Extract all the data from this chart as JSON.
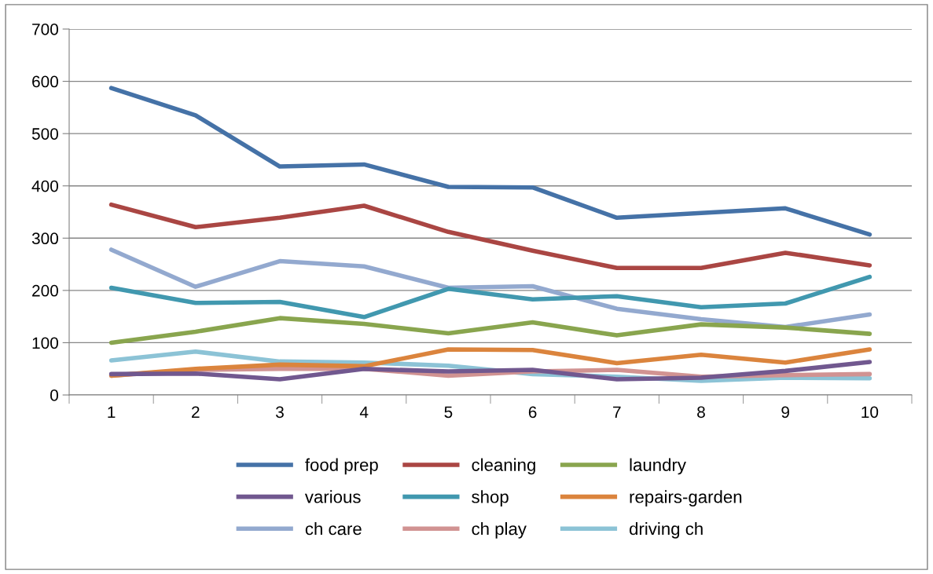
{
  "chart_data": {
    "type": "line",
    "categories": [
      "1",
      "2",
      "3",
      "4",
      "5",
      "6",
      "7",
      "8",
      "9",
      "10"
    ],
    "ylim": [
      0,
      700
    ],
    "yticks": [
      0,
      100,
      200,
      300,
      400,
      500,
      600,
      700
    ],
    "grid": "y",
    "legend": "bottom",
    "marker": "none",
    "line_style": "solid",
    "series": [
      {
        "name": "food prep",
        "color": "#4572a7",
        "values": [
          587,
          535,
          437,
          441,
          398,
          397,
          339,
          348,
          357,
          307
        ]
      },
      {
        "name": "cleaning",
        "color": "#aa4643",
        "values": [
          364,
          321,
          339,
          362,
          312,
          276,
          243,
          243,
          272,
          248
        ]
      },
      {
        "name": "laundry",
        "color": "#89a54e",
        "values": [
          100,
          121,
          147,
          136,
          118,
          139,
          114,
          135,
          129,
          117
        ]
      },
      {
        "name": "various",
        "color": "#71588f",
        "values": [
          40,
          41,
          30,
          50,
          45,
          48,
          30,
          33,
          46,
          63
        ]
      },
      {
        "name": "shop",
        "color": "#4198af",
        "values": [
          205,
          176,
          178,
          149,
          203,
          183,
          189,
          168,
          175,
          226
        ]
      },
      {
        "name": "repairs-garden",
        "color": "#db843d",
        "values": [
          37,
          50,
          58,
          55,
          87,
          86,
          61,
          77,
          62,
          87
        ]
      },
      {
        "name": "ch care",
        "color": "#93a9cf",
        "values": [
          278,
          207,
          256,
          246,
          205,
          208,
          165,
          145,
          130,
          154
        ]
      },
      {
        "name": "ch play",
        "color": "#d19392",
        "values": [
          37,
          48,
          50,
          50,
          37,
          45,
          48,
          35,
          38,
          40
        ]
      },
      {
        "name": "driving ch",
        "color": "#8cc3d6",
        "values": [
          66,
          83,
          64,
          62,
          56,
          40,
          35,
          27,
          33,
          32
        ]
      }
    ]
  }
}
